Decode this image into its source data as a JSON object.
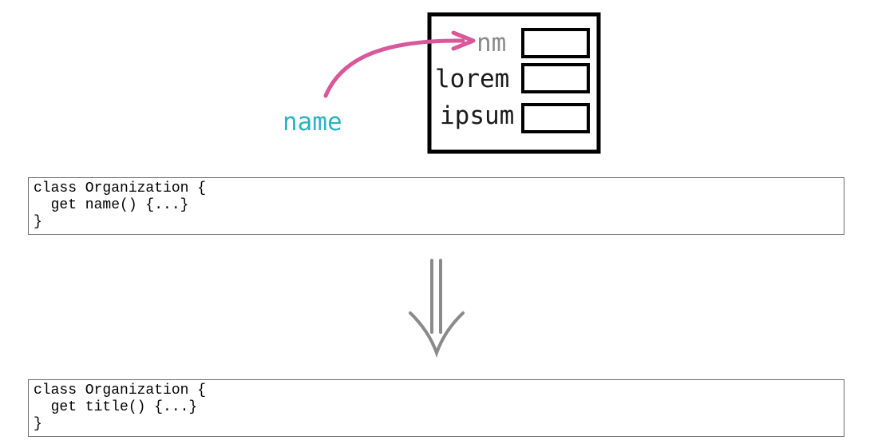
{
  "diagram": {
    "pointer_label": "name",
    "fields": [
      "nm",
      "lorem",
      "ipsum"
    ],
    "pointer_color": "#d9589a",
    "label_color": "#2bb3c0",
    "renamed_field_color": "#8a8a8a"
  },
  "code_before": {
    "lines": [
      "class Organization {",
      "  get name() {...}",
      "}"
    ]
  },
  "code_after": {
    "lines": [
      "class Organization {",
      "  get title() {...}",
      "}"
    ]
  },
  "transform_arrow": {
    "icon": "double-down-arrow-icon",
    "color": "#8a8a8a"
  }
}
